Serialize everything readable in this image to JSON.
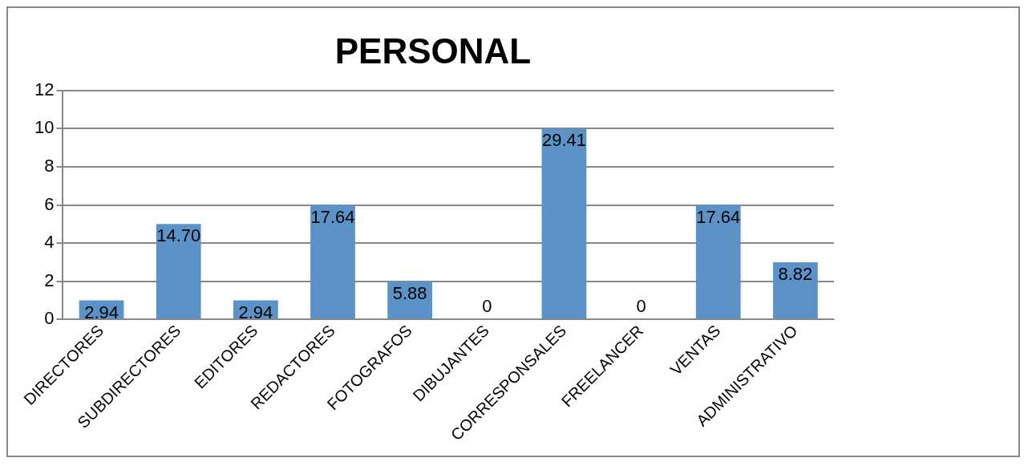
{
  "chart_data": {
    "type": "bar",
    "title": "PERSONAL",
    "categories": [
      "DIRECTORES",
      "SUBDIRECTORES",
      "EDITORES",
      "REDACTORES",
      "FOTOGRAFOS",
      "DIBUJANTES",
      "CORRESPONSALES",
      "FREELANCER",
      "VENTAS",
      "ADMINISTRATIVO"
    ],
    "series": [
      {
        "color": "#5b93c8",
        "values": [
          1,
          5,
          1,
          6,
          2,
          0,
          10,
          0,
          6,
          3
        ]
      }
    ],
    "annotations": [
      {
        "text": "2.94",
        "x": "DIRECTORES",
        "y": 1
      },
      {
        "text": "14.70",
        "x": "SUBDIRECTORES",
        "y": 5
      },
      {
        "text": "2.94",
        "x": "EDITORES",
        "y": 1
      },
      {
        "text": "17.64",
        "x": "REDACTORES",
        "y": 6
      },
      {
        "text": "5.88",
        "x": "FOTOGRAFOS",
        "y": 2
      },
      {
        "text": "0",
        "x": "DIBUJANTES",
        "y": 0
      },
      {
        "text": "29.41",
        "x": "CORRESPONSALES",
        "y": 10
      },
      {
        "text": "0",
        "x": "FREELANCER",
        "y": 0
      },
      {
        "text": "17.64",
        "x": "VENTAS",
        "y": 6
      },
      {
        "text": "8.82",
        "x": "ADMINISTRATIVO",
        "y": 3
      }
    ],
    "ylim": [
      0,
      12
    ],
    "yticks": [
      0,
      2,
      4,
      6,
      8,
      10,
      12
    ],
    "grid": "y",
    "legend": false
  }
}
